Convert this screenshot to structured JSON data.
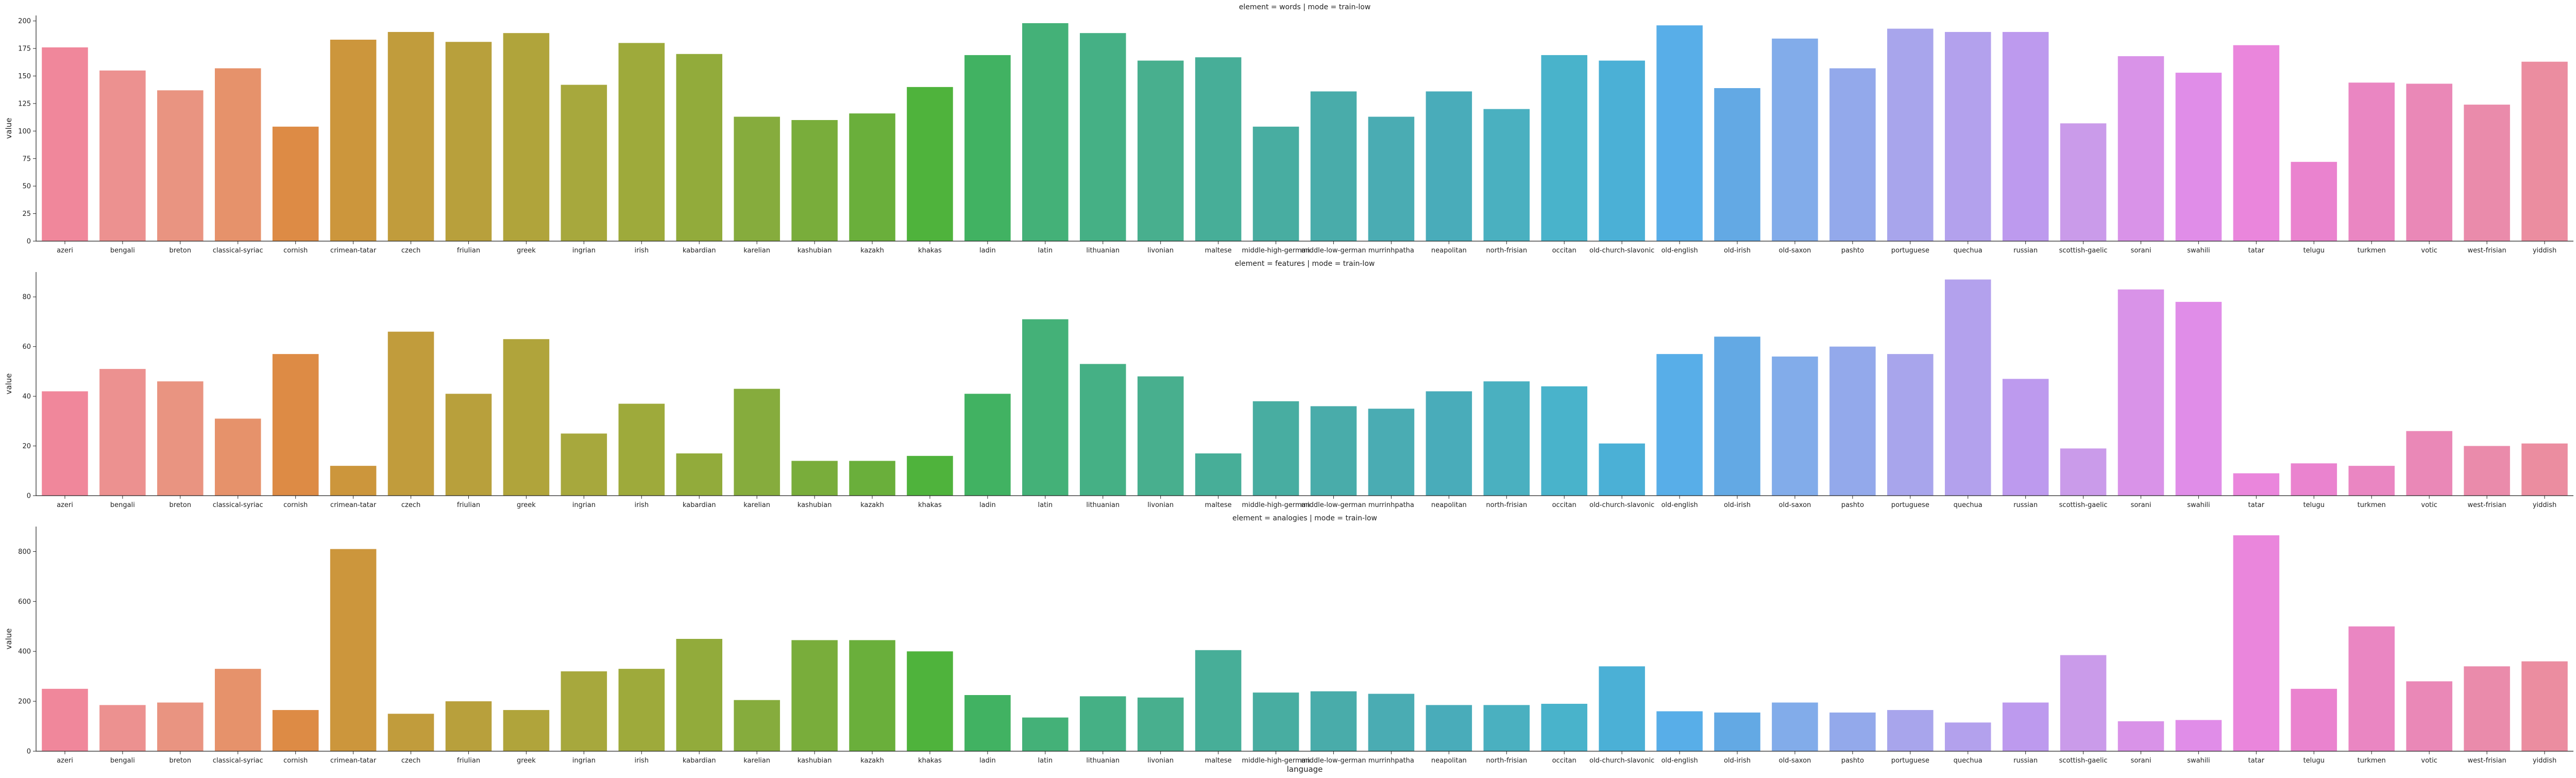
{
  "chart_data": {
    "type": "bar",
    "xlabel": "language",
    "categories": [
      "azeri",
      "bengali",
      "breton",
      "classical-syriac",
      "cornish",
      "crimean-tatar",
      "czech",
      "friulian",
      "greek",
      "ingrian",
      "irish",
      "kabardian",
      "karelian",
      "kashubian",
      "kazakh",
      "khakas",
      "ladin",
      "latin",
      "lithuanian",
      "livonian",
      "maltese",
      "middle-high-german",
      "middle-low-german",
      "murrinhpatha",
      "neapolitan",
      "north-frisian",
      "occitan",
      "old-church-slavonic",
      "old-english",
      "old-irish",
      "old-saxon",
      "pashto",
      "portuguese",
      "quechua",
      "russian",
      "scottish-gaelic",
      "sorani",
      "swahili",
      "tatar",
      "telugu",
      "turkmen",
      "votic",
      "west-frisian",
      "yiddish"
    ],
    "colors": [
      "#f0879b",
      "#ec9190",
      "#e99481",
      "#e6926b",
      "#dd8b45",
      "#cc963c",
      "#c19c3c",
      "#b8a03c",
      "#b0a43b",
      "#a7a83d",
      "#9eaa3b",
      "#92ab3b",
      "#86ac3d",
      "#79ad3b",
      "#6aaf3b",
      "#4fb33c",
      "#41b262",
      "#44b178",
      "#45b085",
      "#48af8e",
      "#47ae98",
      "#48ada1",
      "#49acaa",
      "#4aacb3",
      "#49acba",
      "#4ab0c0",
      "#49b3cb",
      "#4bb0d6",
      "#58aee8",
      "#63a9e4",
      "#82acea",
      "#93a9eb",
      "#a8a5ec",
      "#b3a1ed",
      "#bd9aee",
      "#ca9bea",
      "#d993e8",
      "#e08de8",
      "#ea86dc",
      "#ea83cf",
      "#ea86c2",
      "#ea88b7",
      "#ea8bab",
      "#eb8da0"
    ],
    "panels": [
      {
        "title": "element = words | mode = train-low",
        "ylabel": "value",
        "ylim": [
          0,
          205
        ],
        "yticks": [
          0,
          25,
          50,
          75,
          100,
          125,
          150,
          175,
          200
        ],
        "values": [
          176,
          155,
          137,
          157,
          104,
          183,
          190,
          181,
          189,
          142,
          180,
          170,
          113,
          110,
          116,
          140,
          169,
          198,
          189,
          164,
          167,
          104,
          136,
          113,
          136,
          120,
          169,
          164,
          196,
          139,
          184,
          157,
          193,
          190,
          190,
          107,
          168,
          153,
          178,
          72,
          144,
          143,
          124,
          163
        ]
      },
      {
        "title": "element = features | mode = train-low",
        "ylabel": "value",
        "ylim": [
          0,
          90
        ],
        "yticks": [
          0,
          20,
          40,
          60,
          80
        ],
        "values": [
          42,
          51,
          46,
          31,
          57,
          12,
          66,
          41,
          63,
          25,
          37,
          17,
          43,
          14,
          14,
          16,
          41,
          71,
          53,
          48,
          17,
          38,
          36,
          35,
          42,
          46,
          44,
          21,
          57,
          64,
          56,
          60,
          57,
          87,
          47,
          19,
          83,
          78,
          9,
          13,
          12,
          26,
          20,
          21
        ]
      },
      {
        "title": "element = analogies | mode = train-low",
        "ylabel": "value",
        "ylim": [
          0,
          900
        ],
        "yticks": [
          0,
          200,
          400,
          600,
          800
        ],
        "values": [
          250,
          185,
          195,
          330,
          165,
          810,
          150,
          200,
          165,
          320,
          330,
          450,
          205,
          445,
          445,
          400,
          225,
          135,
          220,
          215,
          405,
          235,
          240,
          230,
          185,
          185,
          190,
          340,
          160,
          155,
          195,
          155,
          165,
          115,
          195,
          385,
          120,
          125,
          865,
          250,
          500,
          280,
          340,
          360
        ]
      }
    ]
  }
}
